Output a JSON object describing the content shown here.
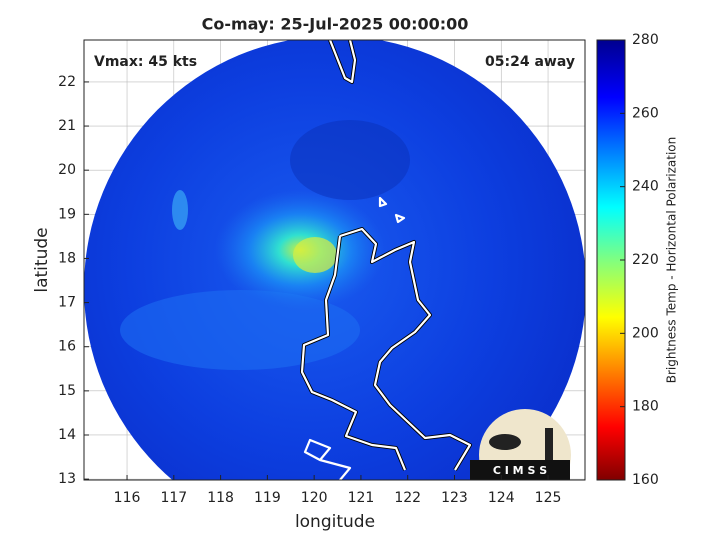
{
  "map": {
    "title": "Co-may: 25-Jul-2025 00:00:00",
    "annotations": {
      "vmax": "Vmax: 45 kts",
      "time_away": "05:24 away"
    },
    "xlabel": "longitude",
    "ylabel": "latitude",
    "xlim": [
      115.08,
      125.79
    ],
    "ylim": [
      12.98,
      22.95
    ],
    "xticks": [
      116,
      117,
      118,
      119,
      120,
      121,
      122,
      123,
      124,
      125
    ],
    "yticks": [
      13,
      14,
      15,
      16,
      17,
      18,
      19,
      20,
      21,
      22
    ],
    "grid": true,
    "colorbar": {
      "label": "Brightness Temp - Horizontal Polarization",
      "lim": [
        160,
        280
      ],
      "ticks": [
        160,
        180,
        200,
        220,
        240,
        260,
        280
      ]
    },
    "logo": "C I M S S"
  }
}
